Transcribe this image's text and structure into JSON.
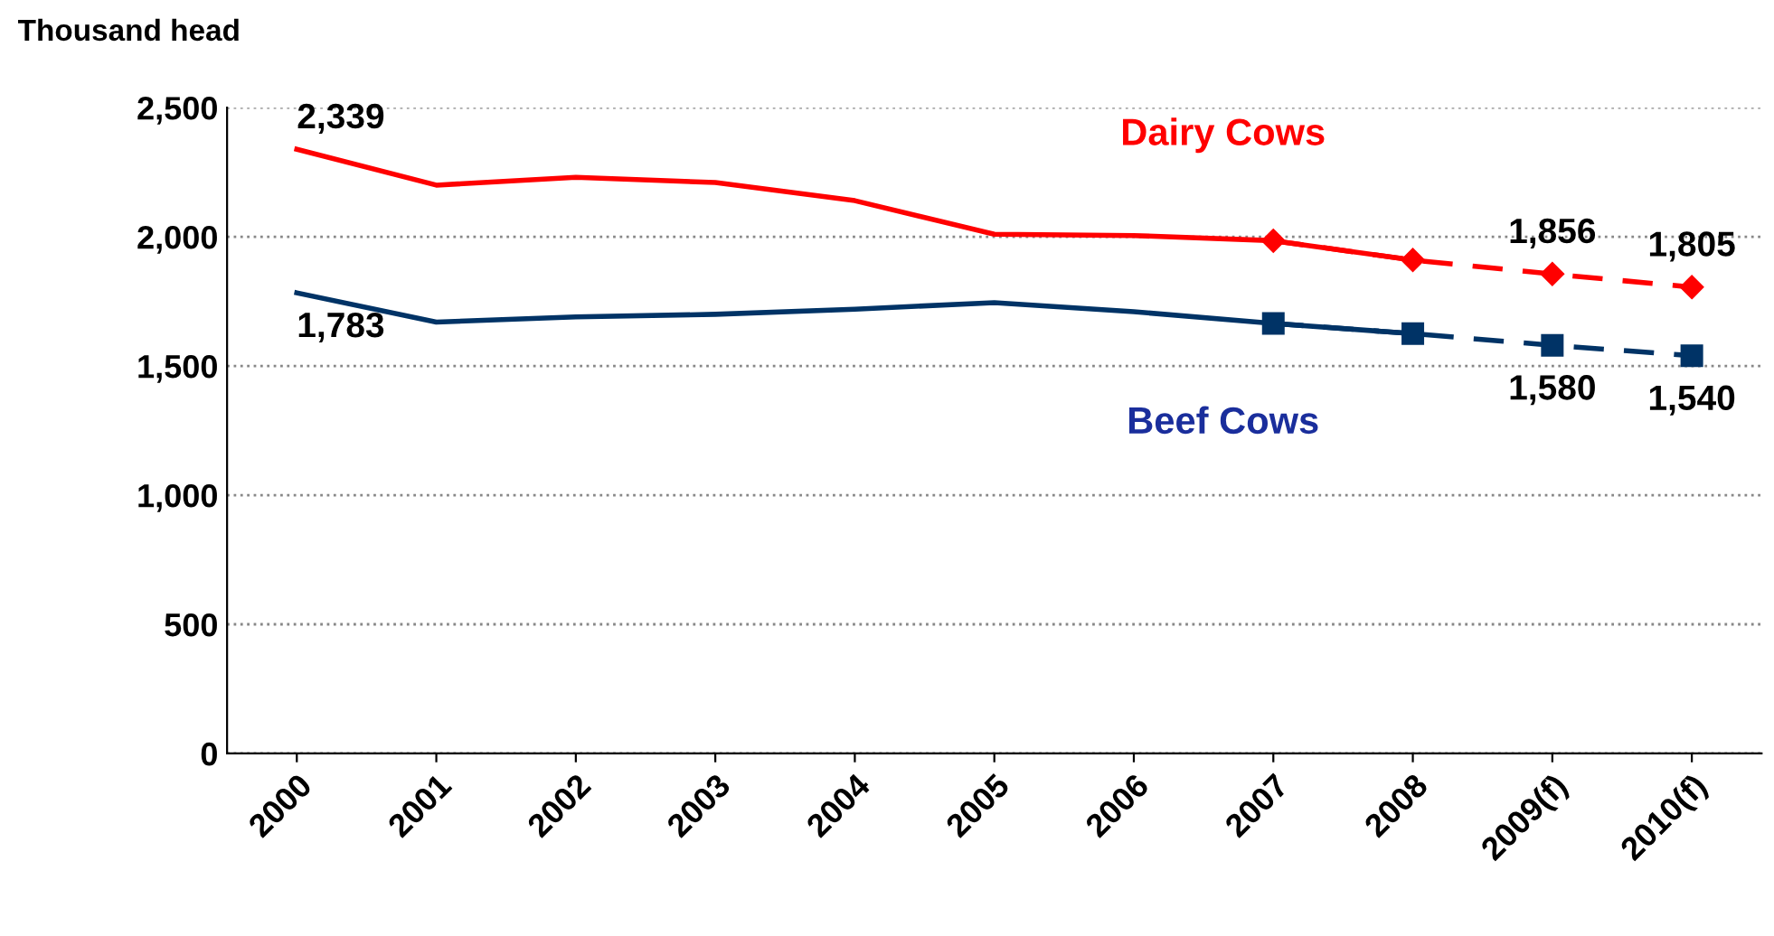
{
  "chart_data": {
    "type": "line",
    "ylabel": "Thousand head",
    "categories": [
      "2000",
      "2001",
      "2002",
      "2003",
      "2004",
      "2005",
      "2006",
      "2007",
      "2008",
      "2009(f)",
      "2010(f)"
    ],
    "series": [
      {
        "name": "Dairy Cows",
        "color": "#ff0000",
        "line_style": "solid",
        "marker": "none",
        "values": [
          2339,
          2200,
          2230,
          2210,
          2140,
          2010,
          2005,
          1985,
          1910,
          null,
          null
        ],
        "value_labels": [
          "2,339",
          null,
          null,
          null,
          null,
          null,
          null,
          null,
          null,
          null,
          null
        ]
      },
      {
        "color": "#ff0000",
        "line_style": "dashed",
        "marker": "diamond",
        "values": [
          null,
          null,
          null,
          null,
          null,
          null,
          null,
          1985,
          1910,
          1856,
          1805
        ],
        "value_labels": [
          null,
          null,
          null,
          null,
          null,
          null,
          null,
          null,
          null,
          "1,856",
          "1,805"
        ]
      },
      {
        "name": "Beef Cows",
        "color": "#003366",
        "line_style": "solid",
        "marker": "none",
        "values": [
          1783,
          1670,
          1690,
          1700,
          1720,
          1745,
          1710,
          1665,
          1625,
          null,
          null
        ],
        "value_labels": [
          "1,783",
          null,
          null,
          null,
          null,
          null,
          null,
          null,
          null,
          null,
          null
        ]
      },
      {
        "color": "#003366",
        "line_style": "dashed",
        "marker": "square",
        "values": [
          null,
          null,
          null,
          null,
          null,
          null,
          null,
          1665,
          1625,
          1580,
          1540
        ],
        "value_labels": [
          null,
          null,
          null,
          null,
          null,
          null,
          null,
          null,
          null,
          "1,580",
          "1,540"
        ]
      }
    ],
    "ylim": [
      0,
      2500
    ],
    "yticks": [
      {
        "value": 0,
        "label": "0"
      },
      {
        "value": 500,
        "label": "500"
      },
      {
        "value": 1000,
        "label": "1,000"
      },
      {
        "value": 1500,
        "label": "1,500"
      },
      {
        "value": 2000,
        "label": "2,000"
      },
      {
        "value": 2500,
        "label": "2,500"
      }
    ],
    "grid": "y",
    "legend": false
  }
}
